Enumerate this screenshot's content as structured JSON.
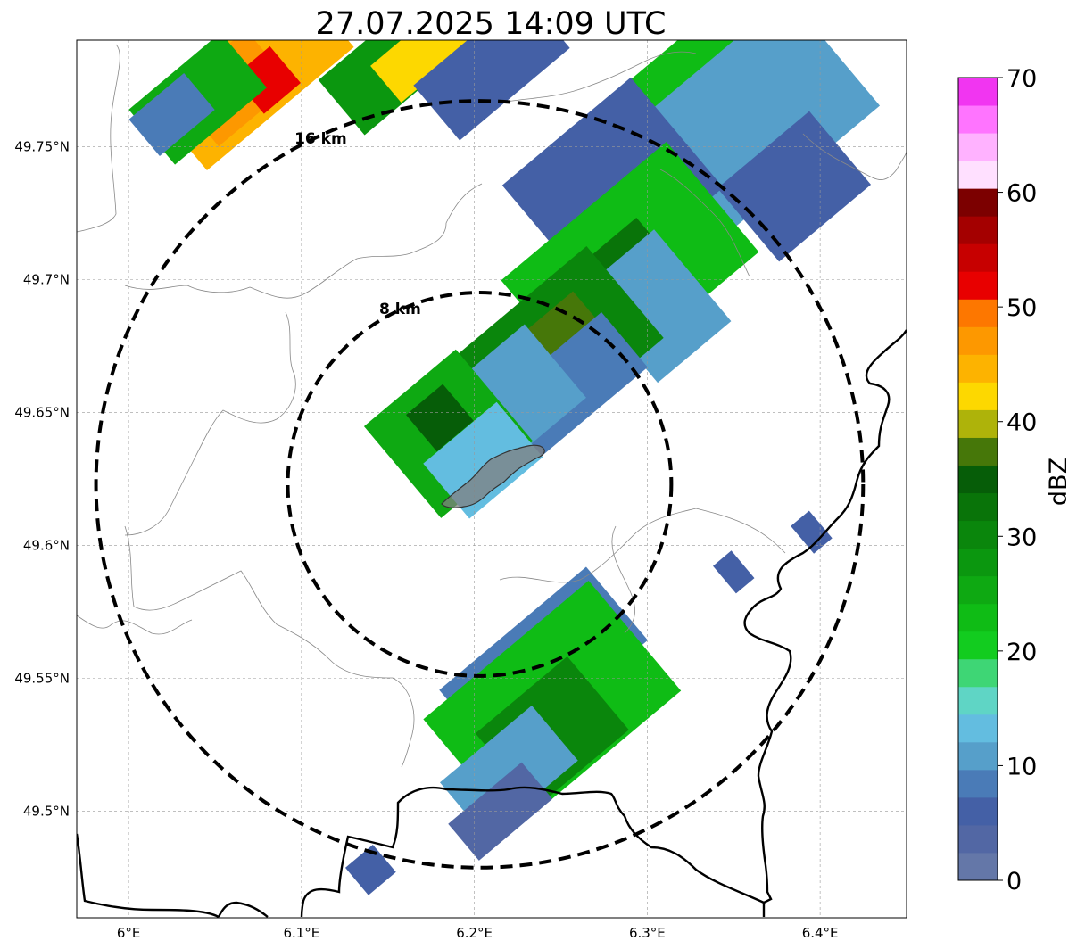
{
  "title": "27.07.2025 14:09 UTC",
  "map": {
    "lon_ticks": [
      {
        "value": 6.0,
        "label": "6°E"
      },
      {
        "value": 6.1,
        "label": "6.1°E"
      },
      {
        "value": 6.2,
        "label": "6.2°E"
      },
      {
        "value": 6.3,
        "label": "6.3°E"
      },
      {
        "value": 6.4,
        "label": "6.4°E"
      }
    ],
    "lat_ticks": [
      {
        "value": 49.75,
        "label": "49.75°N"
      },
      {
        "value": 49.7,
        "label": "49.7°N"
      },
      {
        "value": 49.65,
        "label": "49.65°N"
      },
      {
        "value": 49.6,
        "label": "49.6°N"
      },
      {
        "value": 49.55,
        "label": "49.55°N"
      },
      {
        "value": 49.5,
        "label": "49.5°N"
      }
    ],
    "extent": {
      "lon_min": 5.97,
      "lon_max": 6.45,
      "lat_min": 49.46,
      "lat_max": 49.79
    },
    "center": {
      "lon": 6.203,
      "lat": 49.623
    },
    "rings": [
      {
        "radius_km": 8,
        "label": "8 km"
      },
      {
        "radius_km": 16,
        "label": "16 km"
      }
    ],
    "gridlines": true,
    "coastline_color": "#000000"
  },
  "colorbar": {
    "label": "dBZ",
    "min": 0,
    "max": 70,
    "tick_labels": [
      "0",
      "10",
      "20",
      "30",
      "40",
      "50",
      "60",
      "70"
    ],
    "colors": [
      "#6477a8",
      "#5267a4",
      "#4460a6",
      "#4a7bb7",
      "#569fca",
      "#63bde0",
      "#5fd5c5",
      "#3ed675",
      "#12cc1f",
      "#0fbc15",
      "#0ea912",
      "#0b970f",
      "#0a860c",
      "#097409",
      "#065d08",
      "#467709",
      "#aeb30a",
      "#fdd800",
      "#fdb300",
      "#fd9800",
      "#fd7700",
      "#e80000",
      "#c70000",
      "#a40000",
      "#7c0000",
      "#ffe0ff",
      "#ffb2ff",
      "#ff74ff",
      "#f135f1"
    ]
  },
  "radar_cells": [
    {
      "lon": 6.07,
      "lat": 49.778,
      "dbz": 44,
      "w_km": 8,
      "h_km": 4
    },
    {
      "lon": 6.06,
      "lat": 49.772,
      "dbz": 48,
      "w_km": 4,
      "h_km": 3
    },
    {
      "lon": 6.08,
      "lat": 49.775,
      "dbz": 52,
      "w_km": 2,
      "h_km": 2
    },
    {
      "lon": 6.04,
      "lat": 49.768,
      "dbz": 26,
      "w_km": 5,
      "h_km": 3
    },
    {
      "lon": 6.025,
      "lat": 49.762,
      "dbz": 8,
      "w_km": 3,
      "h_km": 2
    },
    {
      "lon": 6.155,
      "lat": 49.782,
      "dbz": 28,
      "w_km": 6,
      "h_km": 3
    },
    {
      "lon": 6.17,
      "lat": 49.785,
      "dbz": 42,
      "w_km": 4,
      "h_km": 2
    },
    {
      "lon": 6.21,
      "lat": 49.78,
      "dbz": 5,
      "w_km": 6,
      "h_km": 3
    },
    {
      "lon": 6.33,
      "lat": 49.785,
      "dbz": 22,
      "w_km": 6,
      "h_km": 2
    },
    {
      "lon": 6.36,
      "lat": 49.76,
      "dbz": 10,
      "w_km": 9,
      "h_km": 6
    },
    {
      "lon": 6.385,
      "lat": 49.735,
      "dbz": 6,
      "w_km": 5,
      "h_km": 4
    },
    {
      "lon": 6.28,
      "lat": 49.735,
      "dbz": 5,
      "w_km": 7,
      "h_km": 6
    },
    {
      "lon": 6.29,
      "lat": 49.705,
      "dbz": 22,
      "w_km": 9,
      "h_km": 6
    },
    {
      "lon": 6.285,
      "lat": 49.695,
      "dbz": 33,
      "w_km": 5,
      "h_km": 4
    },
    {
      "lon": 6.305,
      "lat": 49.69,
      "dbz": 12,
      "w_km": 4,
      "h_km": 5
    },
    {
      "lon": 6.25,
      "lat": 49.675,
      "dbz": 30,
      "w_km": 7,
      "h_km": 5
    },
    {
      "lon": 6.25,
      "lat": 49.68,
      "dbz": 37,
      "w_km": 3,
      "h_km": 2
    },
    {
      "lon": 6.255,
      "lat": 49.66,
      "dbz": 9,
      "w_km": 6,
      "h_km": 3
    },
    {
      "lon": 6.215,
      "lat": 49.652,
      "dbz": 12,
      "w_km": 6,
      "h_km": 4
    },
    {
      "lon": 6.185,
      "lat": 49.642,
      "dbz": 25,
      "w_km": 5,
      "h_km": 5
    },
    {
      "lon": 6.18,
      "lat": 49.648,
      "dbz": 34,
      "w_km": 2,
      "h_km": 2
    },
    {
      "lon": 6.205,
      "lat": 49.632,
      "dbz": 14,
      "w_km": 4,
      "h_km": 3
    },
    {
      "lon": 6.24,
      "lat": 49.555,
      "dbz": 9,
      "w_km": 8,
      "h_km": 4
    },
    {
      "lon": 6.245,
      "lat": 49.54,
      "dbz": 24,
      "w_km": 9,
      "h_km": 6
    },
    {
      "lon": 6.245,
      "lat": 49.53,
      "dbz": 31,
      "w_km": 5,
      "h_km": 4
    },
    {
      "lon": 6.22,
      "lat": 49.515,
      "dbz": 10,
      "w_km": 5,
      "h_km": 3
    },
    {
      "lon": 6.215,
      "lat": 49.5,
      "dbz": 4,
      "w_km": 4,
      "h_km": 2
    },
    {
      "lon": 6.14,
      "lat": 49.478,
      "dbz": 5,
      "w_km": 1.5,
      "h_km": 1.5
    },
    {
      "lon": 6.395,
      "lat": 49.605,
      "dbz": 7,
      "w_km": 1,
      "h_km": 1.5
    },
    {
      "lon": 6.35,
      "lat": 49.59,
      "dbz": 7,
      "w_km": 1,
      "h_km": 1.5
    }
  ]
}
